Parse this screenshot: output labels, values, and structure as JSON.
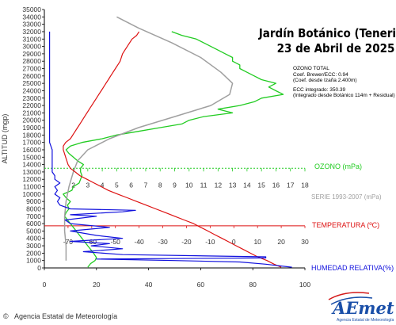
{
  "title": {
    "line1": "Jardín Botánico (Tenerife)",
    "line2": "23 de Abril de 2025"
  },
  "info": {
    "ozone_heading": "OZONO TOTAL",
    "coef_brewer": "Coef. Brewer/ECC: 0.94",
    "coef_izana": "(Coef. desde Izaña 2.400m)",
    "ecc_integrated": "ECC integrado: 350.39",
    "ecc_note": "(Integrado desde Botánico 114m + Residual)"
  },
  "footer": {
    "agency": "Agencia Estatal de Meteorología",
    "copyright": "©",
    "logo": "AEmet",
    "logo_sub": "Agencia Estatal de Meteorología"
  },
  "colors": {
    "ozone": "#22cc22",
    "series": "#a0a0a0",
    "temperature": "#dd1111",
    "humidity": "#1111dd",
    "axes": "#000000"
  },
  "chart_data": {
    "type": "line",
    "ylabel": "ALTITUD (mgp)",
    "ylim": [
      0,
      35000
    ],
    "yticks": [
      0,
      1000,
      2000,
      3000,
      4000,
      5000,
      6000,
      7000,
      8000,
      9000,
      10000,
      11000,
      12000,
      13000,
      14000,
      15000,
      16000,
      17000,
      18000,
      19000,
      20000,
      21000,
      22000,
      23000,
      24000,
      25000,
      26000,
      27000,
      28000,
      29000,
      30000,
      31000,
      32000,
      33000,
      34000,
      35000
    ],
    "axes": {
      "ozone": {
        "label": "OZONO (mPa)",
        "range": [
          0,
          18
        ],
        "ticks": [
          2,
          3,
          4,
          5,
          6,
          7,
          8,
          9,
          10,
          11,
          12,
          13,
          14,
          15,
          16,
          17,
          18
        ],
        "baseline_alt": 13500
      },
      "series": {
        "label": "SERIE 1993-2007 (mPa)"
      },
      "temperature": {
        "label": "TEMPERATURA (ºC)",
        "range": [
          -80,
          30
        ],
        "ticks": [
          -70,
          -60,
          -50,
          -40,
          -30,
          -20,
          -10,
          0,
          10,
          20,
          30
        ],
        "baseline_alt": 5700
      },
      "humidity": {
        "label": "HUMEDAD RELATIVA(%)",
        "range": [
          0,
          100
        ],
        "ticks": [
          0,
          20,
          40,
          60,
          80,
          100
        ]
      }
    },
    "series": [
      {
        "key": "ozone",
        "points": [
          [
            3.0,
            100
          ],
          [
            3.2,
            600
          ],
          [
            3.5,
            1000
          ],
          [
            3.6,
            1400
          ],
          [
            3.4,
            2000
          ],
          [
            3.2,
            2500
          ],
          [
            3.0,
            3000
          ],
          [
            2.8,
            3500
          ],
          [
            2.6,
            4000
          ],
          [
            2.4,
            4500
          ],
          [
            2.2,
            5000
          ],
          [
            2.0,
            5500
          ],
          [
            1.8,
            6000
          ],
          [
            1.6,
            6500
          ],
          [
            1.4,
            7000
          ],
          [
            1.5,
            7500
          ],
          [
            1.7,
            8000
          ],
          [
            1.6,
            8500
          ],
          [
            1.8,
            9000
          ],
          [
            1.5,
            9500
          ],
          [
            1.3,
            10000
          ],
          [
            1.9,
            10500
          ],
          [
            2.0,
            11000
          ],
          [
            2.4,
            11500
          ],
          [
            2.5,
            12000
          ],
          [
            2.6,
            12500
          ],
          [
            2.5,
            13000
          ],
          [
            2.5,
            13500
          ],
          [
            2.7,
            14000
          ],
          [
            2.3,
            14500
          ],
          [
            2.0,
            15000
          ],
          [
            1.7,
            15500
          ],
          [
            1.5,
            16000
          ],
          [
            1.8,
            16500
          ],
          [
            2.6,
            17000
          ],
          [
            4.0,
            17500
          ],
          [
            5.0,
            18000
          ],
          [
            6.5,
            18500
          ],
          [
            8.0,
            19000
          ],
          [
            9.5,
            19500
          ],
          [
            10.0,
            20000
          ],
          [
            11.0,
            20500
          ],
          [
            13.0,
            21000
          ],
          [
            12.0,
            21500
          ],
          [
            13.5,
            22000
          ],
          [
            14.5,
            22500
          ],
          [
            15.0,
            23000
          ],
          [
            16.5,
            23500
          ],
          [
            16.0,
            24000
          ],
          [
            15.5,
            24500
          ],
          [
            16.0,
            25000
          ],
          [
            15.0,
            25500
          ],
          [
            14.5,
            26000
          ],
          [
            14.0,
            26500
          ],
          [
            13.5,
            27000
          ],
          [
            13.5,
            27500
          ],
          [
            13.0,
            28000
          ],
          [
            13.0,
            28500
          ],
          [
            12.5,
            29000
          ],
          [
            12.0,
            29500
          ],
          [
            11.5,
            30000
          ],
          [
            11.0,
            30500
          ],
          [
            10.5,
            31000
          ],
          [
            9.5,
            31500
          ],
          [
            8.8,
            32000
          ]
        ]
      },
      {
        "key": "series",
        "points": [
          [
            1.5,
            1000
          ],
          [
            1.5,
            3000
          ],
          [
            1.4,
            5000
          ],
          [
            1.4,
            7000
          ],
          [
            1.5,
            9000
          ],
          [
            1.7,
            11000
          ],
          [
            2.0,
            13000
          ],
          [
            2.3,
            14500
          ],
          [
            3.0,
            16000
          ],
          [
            4.5,
            17500
          ],
          [
            6.5,
            19000
          ],
          [
            9.0,
            20500
          ],
          [
            11.5,
            22000
          ],
          [
            12.8,
            23500
          ],
          [
            13.0,
            25000
          ],
          [
            12.2,
            26500
          ],
          [
            10.8,
            28500
          ],
          [
            8.8,
            30500
          ],
          [
            6.5,
            32500
          ],
          [
            5.0,
            34000
          ]
        ]
      },
      {
        "key": "temperature",
        "points": [
          [
            20,
            100
          ],
          [
            17,
            500
          ],
          [
            14,
            1000
          ],
          [
            10,
            1500
          ],
          [
            7,
            2000
          ],
          [
            4,
            2500
          ],
          [
            1,
            3000
          ],
          [
            -2,
            3500
          ],
          [
            -5,
            4000
          ],
          [
            -8,
            4500
          ],
          [
            -11,
            5000
          ],
          [
            -14,
            5500
          ],
          [
            -17,
            6000
          ],
          [
            -21,
            6500
          ],
          [
            -25,
            7000
          ],
          [
            -29,
            7500
          ],
          [
            -33,
            8000
          ],
          [
            -37,
            8500
          ],
          [
            -41,
            9000
          ],
          [
            -45,
            9500
          ],
          [
            -49,
            10000
          ],
          [
            -53,
            10500
          ],
          [
            -56,
            11000
          ],
          [
            -59,
            11500
          ],
          [
            -62,
            12000
          ],
          [
            -65,
            12500
          ],
          [
            -67,
            13000
          ],
          [
            -69,
            13500
          ],
          [
            -70,
            14000
          ],
          [
            -70.5,
            14500
          ],
          [
            -71,
            15000
          ],
          [
            -71.5,
            15500
          ],
          [
            -72,
            16000
          ],
          [
            -72,
            16500
          ],
          [
            -71,
            17000
          ],
          [
            -69,
            17500
          ],
          [
            -68,
            18000
          ],
          [
            -67,
            18500
          ],
          [
            -66,
            19000
          ],
          [
            -65,
            19500
          ],
          [
            -64,
            20000
          ],
          [
            -63,
            20500
          ],
          [
            -62,
            21000
          ],
          [
            -61,
            21500
          ],
          [
            -60,
            22000
          ],
          [
            -59,
            22500
          ],
          [
            -58,
            23000
          ],
          [
            -57,
            23500
          ],
          [
            -56,
            24000
          ],
          [
            -55,
            24500
          ],
          [
            -54,
            25000
          ],
          [
            -53,
            25500
          ],
          [
            -52,
            26000
          ],
          [
            -51,
            26500
          ],
          [
            -50,
            27000
          ],
          [
            -49,
            27500
          ],
          [
            -48,
            28000
          ],
          [
            -47.5,
            28500
          ],
          [
            -47,
            29000
          ],
          [
            -46,
            29500
          ],
          [
            -45,
            30000
          ],
          [
            -44,
            30500
          ],
          [
            -43,
            31000
          ],
          [
            -41,
            31500
          ],
          [
            -40,
            32000
          ]
        ]
      },
      {
        "key": "humidity",
        "points": [
          [
            95,
            100
          ],
          [
            85,
            500
          ],
          [
            75,
            800
          ],
          [
            50,
            1000
          ],
          [
            20,
            1200
          ],
          [
            85,
            1350
          ],
          [
            85,
            1500
          ],
          [
            30,
            1800
          ],
          [
            15,
            2200
          ],
          [
            30,
            2600
          ],
          [
            18,
            3000
          ],
          [
            25,
            3300
          ],
          [
            10,
            3600
          ],
          [
            30,
            4000
          ],
          [
            20,
            4400
          ],
          [
            10,
            5000
          ],
          [
            25,
            5500
          ],
          [
            10,
            6000
          ],
          [
            8,
            6500
          ],
          [
            20,
            7000
          ],
          [
            10,
            7200
          ],
          [
            30,
            7600
          ],
          [
            35,
            7800
          ],
          [
            10,
            8000
          ],
          [
            6,
            8500
          ],
          [
            5,
            9000
          ],
          [
            6,
            9500
          ],
          [
            4,
            10000
          ],
          [
            5,
            10500
          ],
          [
            4,
            11000
          ],
          [
            6,
            11500
          ],
          [
            4,
            12000
          ],
          [
            4,
            12500
          ],
          [
            3,
            13000
          ],
          [
            3,
            14000
          ],
          [
            3,
            15000
          ],
          [
            3,
            16000
          ],
          [
            2,
            17000
          ],
          [
            2,
            18000
          ],
          [
            2,
            19000
          ],
          [
            2,
            20000
          ],
          [
            2,
            22000
          ],
          [
            2,
            24000
          ],
          [
            2,
            26000
          ],
          [
            2,
            28000
          ],
          [
            2,
            30000
          ],
          [
            2,
            32000
          ]
        ]
      }
    ]
  }
}
